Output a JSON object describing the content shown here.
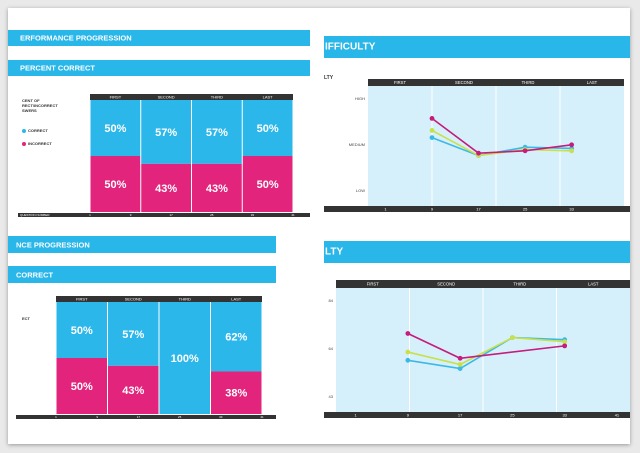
{
  "panel_tl": {
    "title": "ERFORMANCE PROGRESSION",
    "subtitle": "PERCENT CORRECT",
    "legend_title": "CENT OF\nRECT/INCORRECT\nSWERS",
    "legend_correct": "CORRECT",
    "legend_incorrect": "INCORRECT",
    "xaxis_label": "QUESTION NUMBER"
  },
  "panel_bl": {
    "title": "NCE PROGRESSION",
    "subtitle": "CORRECT",
    "legend_title": "ECT"
  },
  "panel_tr": {
    "title": "IFFICULTY",
    "ylabel_frag": "LTY"
  },
  "panel_br": {
    "title": "LTY"
  },
  "colors": {
    "correct": "#2cb7ea",
    "incorrect": "#e2247c",
    "header": "#29b6e8",
    "dark": "#333333",
    "line_light": "#d3eefa",
    "green": "#c8e04a",
    "purple": "#c41d7c",
    "cyan": "#3bb8e6"
  },
  "chart_data": [
    {
      "type": "bar",
      "categories": [
        "FIRST",
        "SECOND",
        "THIRD",
        "LAST"
      ],
      "series": [
        {
          "name": "CORRECT",
          "values": [
            50,
            57,
            57,
            50
          ]
        },
        {
          "name": "INCORRECT",
          "values": [
            50,
            43,
            43,
            50
          ]
        }
      ],
      "x_ticks": [
        "1",
        "9",
        "17",
        "25",
        "33",
        "41"
      ],
      "ylim": [
        0,
        100
      ]
    },
    {
      "type": "line",
      "categories": [
        "FIRST",
        "SECOND",
        "THIRD",
        "LAST"
      ],
      "x_ticks": [
        "1",
        "9",
        "17",
        "25",
        "33"
      ],
      "y_ticks": [
        "HIGH",
        "MEDIUM",
        "LOW"
      ],
      "x": [
        9,
        17,
        25,
        33
      ],
      "ylim": [
        0,
        10
      ],
      "series": [
        {
          "values": [
            5.7,
            4.2,
            4.9,
            4.8
          ]
        },
        {
          "values": [
            6.3,
            4.2,
            4.7,
            4.6
          ]
        },
        {
          "values": [
            7.3,
            4.4,
            4.6,
            5.1
          ]
        }
      ]
    },
    {
      "type": "bar",
      "categories": [
        "FIRST",
        "SECOND",
        "THIRD",
        "LAST"
      ],
      "series": [
        {
          "name": "CORRECT",
          "values": [
            50,
            57,
            100,
            62
          ]
        },
        {
          "name": "INCORRECT",
          "values": [
            50,
            43,
            0,
            38
          ]
        }
      ],
      "x_ticks": [
        "1",
        "9",
        "17",
        "25",
        "33",
        "41"
      ],
      "ylim": [
        0,
        100
      ]
    },
    {
      "type": "line",
      "categories": [
        "FIRST",
        "SECOND",
        "THIRD",
        "LAST"
      ],
      "x_ticks": [
        "1",
        "9",
        "17",
        "25",
        "33",
        "41"
      ],
      "y_ticks": [
        "84",
        "64",
        "43"
      ],
      "x": [
        9,
        17,
        25,
        33
      ],
      "ylim": [
        30,
        90
      ],
      "series": [
        {
          "values": [
            55,
            51,
            66,
            65
          ]
        },
        {
          "values": [
            59,
            53,
            66,
            64
          ]
        },
        {
          "values": [
            68,
            56,
            0,
            62
          ]
        }
      ]
    }
  ]
}
